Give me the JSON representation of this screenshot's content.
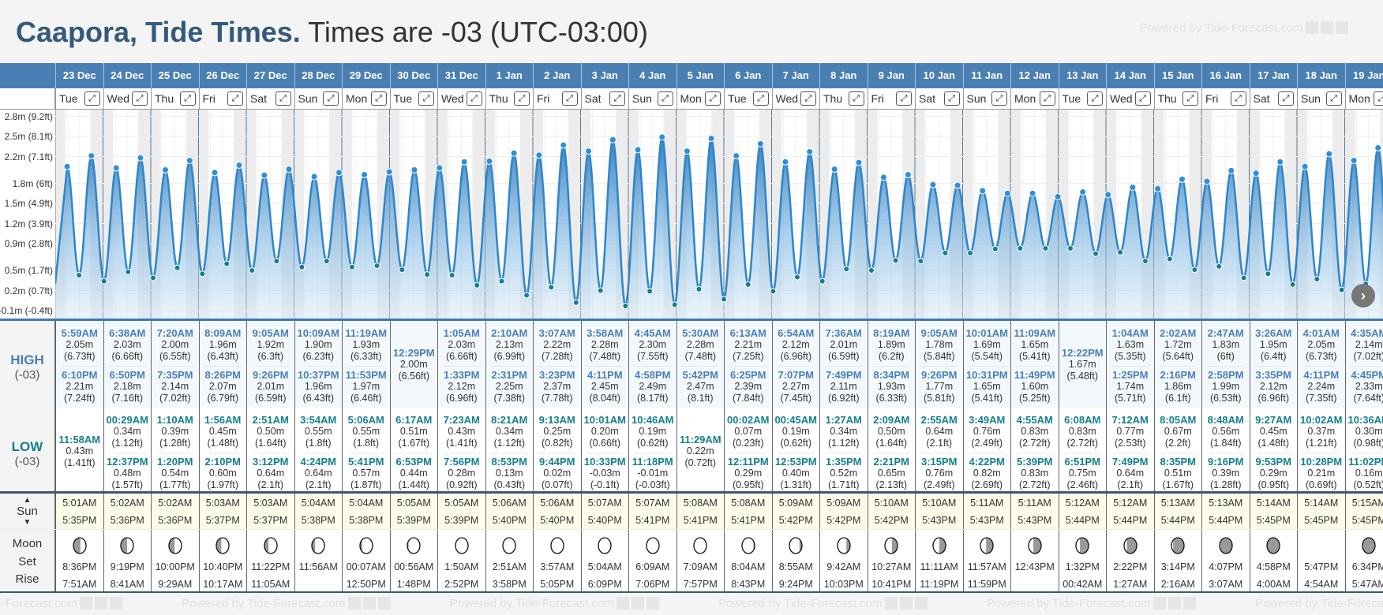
{
  "title": {
    "location": "Caapora, Tide Times.",
    "timezone": "Times are -03 (UTC-03:00)"
  },
  "watermark": "Powered by Tide-Forecast.com",
  "labels": {
    "high": "HIGH",
    "low": "LOW",
    "tz": "(-03)",
    "sun": "Sun",
    "sun_up": "▲",
    "sun_down": "▼",
    "moon": "Moon",
    "set": "Set",
    "rise": "Rise",
    "expand": "⤢",
    "next": "›"
  },
  "y_axis": [
    "2.8m (9.2ft)",
    "2.5m (8.1ft)",
    "2.2m (7.1ft)",
    "1.8m (6ft)",
    "1.5m (4.9ft)",
    "1.2m (3.9ft)",
    "0.9m (2.8ft)",
    "0.5m (1.7ft)",
    "0.2m (0.7ft)",
    "-0.1m (-0.4ft)"
  ],
  "colors": {
    "header": "#4a7fb4",
    "high": "#4a7fb8",
    "low": "#137f8c",
    "curve": "#2f86c8"
  },
  "days": [
    {
      "date": "23 Dec",
      "dow": "Tue",
      "high": [
        {
          "t": "5:59AM",
          "m": "2.05m",
          "ft": "(6.73ft)"
        },
        {
          "t": "6:10PM",
          "m": "2.21m",
          "ft": "(7.24ft)"
        }
      ],
      "low": [
        {
          "t": "11:58AM",
          "m": "0.43m",
          "ft": "(1.41ft)"
        }
      ],
      "sunrise": "5:01AM",
      "sunset": "5:35PM",
      "moon_dark": 0.55,
      "moon_side": "left",
      "moonset": "8:36PM",
      "moonrise": "7:51AM"
    },
    {
      "date": "24 Dec",
      "dow": "Wed",
      "high": [
        {
          "t": "6:38AM",
          "m": "2.03m",
          "ft": "(6.66ft)"
        },
        {
          "t": "6:50PM",
          "m": "2.18m",
          "ft": "(7.16ft)"
        }
      ],
      "low": [
        {
          "t": "00:29AM",
          "m": "0.34m",
          "ft": "(1.12ft)"
        },
        {
          "t": "12:37PM",
          "m": "0.48m",
          "ft": "(1.57ft)"
        }
      ],
      "sunrise": "5:02AM",
      "sunset": "5:36PM",
      "moon_dark": 0.5,
      "moon_side": "left",
      "moonset": "9:19PM",
      "moonrise": "8:41AM"
    },
    {
      "date": "25 Dec",
      "dow": "Thu",
      "high": [
        {
          "t": "7:20AM",
          "m": "2.00m",
          "ft": "(6.55ft)"
        },
        {
          "t": "7:35PM",
          "m": "2.14m",
          "ft": "(7.02ft)"
        }
      ],
      "low": [
        {
          "t": "1:10AM",
          "m": "0.39m",
          "ft": "(1.28ft)"
        },
        {
          "t": "1:20PM",
          "m": "0.54m",
          "ft": "(1.77ft)"
        }
      ],
      "sunrise": "5:02AM",
      "sunset": "5:36PM",
      "moon_dark": 0.45,
      "moon_side": "left",
      "moonset": "10:00PM",
      "moonrise": "9:29AM"
    },
    {
      "date": "26 Dec",
      "dow": "Fri",
      "high": [
        {
          "t": "8:09AM",
          "m": "1.96m",
          "ft": "(6.43ft)"
        },
        {
          "t": "8:26PM",
          "m": "2.07m",
          "ft": "(6.79ft)"
        }
      ],
      "low": [
        {
          "t": "1:56AM",
          "m": "0.45m",
          "ft": "(1.48ft)"
        },
        {
          "t": "2:10PM",
          "m": "0.60m",
          "ft": "(1.97ft)"
        }
      ],
      "sunrise": "5:03AM",
      "sunset": "5:37PM",
      "moon_dark": 0.4,
      "moon_side": "left",
      "moonset": "10:40PM",
      "moonrise": "10:17AM"
    },
    {
      "date": "27 Dec",
      "dow": "Sat",
      "high": [
        {
          "t": "9:05AM",
          "m": "1.92m",
          "ft": "(6.3ft)"
        },
        {
          "t": "9:26PM",
          "m": "2.01m",
          "ft": "(6.59ft)"
        }
      ],
      "low": [
        {
          "t": "2:51AM",
          "m": "0.50m",
          "ft": "(1.64ft)"
        },
        {
          "t": "3:12PM",
          "m": "0.64m",
          "ft": "(2.1ft)"
        }
      ],
      "sunrise": "5:03AM",
      "sunset": "5:37PM",
      "moon_dark": 0.32,
      "moon_side": "left",
      "moonset": "11:22PM",
      "moonrise": "11:05AM"
    },
    {
      "date": "28 Dec",
      "dow": "Sun",
      "high": [
        {
          "t": "10:09AM",
          "m": "1.90m",
          "ft": "(6.23ft)"
        },
        {
          "t": "10:37PM",
          "m": "1.96m",
          "ft": "(6.43ft)"
        }
      ],
      "low": [
        {
          "t": "3:54AM",
          "m": "0.55m",
          "ft": "(1.8ft)"
        },
        {
          "t": "4:24PM",
          "m": "0.64m",
          "ft": "(2.1ft)"
        }
      ],
      "sunrise": "5:04AM",
      "sunset": "5:38PM",
      "moon_dark": 0.25,
      "moon_side": "left",
      "moonset": "",
      "moonrise": "11:56AM"
    },
    {
      "date": "29 Dec",
      "dow": "Mon",
      "high": [
        {
          "t": "11:19AM",
          "m": "1.93m",
          "ft": "(6.33ft)"
        },
        {
          "t": "11:53PM",
          "m": "1.97m",
          "ft": "(6.46ft)"
        }
      ],
      "low": [
        {
          "t": "5:06AM",
          "m": "0.55m",
          "ft": "(1.8ft)"
        },
        {
          "t": "5:41PM",
          "m": "0.57m",
          "ft": "(1.87ft)"
        }
      ],
      "sunrise": "5:04AM",
      "sunset": "5:38PM",
      "moon_dark": 0.18,
      "moon_side": "left",
      "moonset": "00:07AM",
      "moonrise": "12:50PM"
    },
    {
      "date": "30 Dec",
      "dow": "Tue",
      "high": [
        {
          "t": "12:29PM",
          "m": "2.00m",
          "ft": "(6.56ft)"
        }
      ],
      "low": [
        {
          "t": "6:17AM",
          "m": "0.51m",
          "ft": "(1.67ft)"
        },
        {
          "t": "6:53PM",
          "m": "0.44m",
          "ft": "(1.44ft)"
        }
      ],
      "sunrise": "5:05AM",
      "sunset": "5:39PM",
      "moon_dark": 0.1,
      "moon_side": "left",
      "moonset": "00:56AM",
      "moonrise": "1:48PM"
    },
    {
      "date": "31 Dec",
      "dow": "Wed",
      "high": [
        {
          "t": "1:05AM",
          "m": "2.03m",
          "ft": "(6.66ft)"
        },
        {
          "t": "1:33PM",
          "m": "2.12m",
          "ft": "(6.96ft)"
        }
      ],
      "low": [
        {
          "t": "7:23AM",
          "m": "0.43m",
          "ft": "(1.41ft)"
        },
        {
          "t": "7:56PM",
          "m": "0.28m",
          "ft": "(0.92ft)"
        }
      ],
      "sunrise": "5:05AM",
      "sunset": "5:39PM",
      "moon_dark": 0.05,
      "moon_side": "left",
      "moonset": "1:50AM",
      "moonrise": "2:52PM"
    },
    {
      "date": "1 Jan",
      "dow": "Thu",
      "high": [
        {
          "t": "2:10AM",
          "m": "2.13m",
          "ft": "(6.99ft)"
        },
        {
          "t": "2:31PM",
          "m": "2.25m",
          "ft": "(7.38ft)"
        }
      ],
      "low": [
        {
          "t": "8:21AM",
          "m": "0.34m",
          "ft": "(1.12ft)"
        },
        {
          "t": "8:53PM",
          "m": "0.13m",
          "ft": "(0.43ft)"
        }
      ],
      "sunrise": "5:06AM",
      "sunset": "5:40PM",
      "moon_dark": 0.02,
      "moon_side": "left",
      "moonset": "2:51AM",
      "moonrise": "3:58PM"
    },
    {
      "date": "2 Jan",
      "dow": "Fri",
      "high": [
        {
          "t": "3:07AM",
          "m": "2.22m",
          "ft": "(7.28ft)"
        },
        {
          "t": "3:23PM",
          "m": "2.37m",
          "ft": "(7.78ft)"
        }
      ],
      "low": [
        {
          "t": "9:13AM",
          "m": "0.25m",
          "ft": "(0.82ft)"
        },
        {
          "t": "9:44PM",
          "m": "0.02m",
          "ft": "(0.07ft)"
        }
      ],
      "sunrise": "5:06AM",
      "sunset": "5:40PM",
      "moon_dark": 0,
      "moon_side": "left",
      "moonset": "3:57AM",
      "moonrise": "5:05PM"
    },
    {
      "date": "3 Jan",
      "dow": "Sat",
      "high": [
        {
          "t": "3:58AM",
          "m": "2.28m",
          "ft": "(7.48ft)"
        },
        {
          "t": "4:11PM",
          "m": "2.45m",
          "ft": "(8.04ft)"
        }
      ],
      "low": [
        {
          "t": "10:01AM",
          "m": "0.20m",
          "ft": "(0.66ft)"
        },
        {
          "t": "10:33PM",
          "m": "-0.03m",
          "ft": "(-0.1ft)"
        }
      ],
      "sunrise": "5:07AM",
      "sunset": "5:40PM",
      "moon_dark": 0,
      "moon_side": "left",
      "moonset": "5:04AM",
      "moonrise": "6:09PM"
    },
    {
      "date": "4 Jan",
      "dow": "Sun",
      "high": [
        {
          "t": "4:45AM",
          "m": "2.30m",
          "ft": "(7.55ft)"
        },
        {
          "t": "4:58PM",
          "m": "2.49m",
          "ft": "(8.17ft)"
        }
      ],
      "low": [
        {
          "t": "10:46AM",
          "m": "0.19m",
          "ft": "(0.62ft)"
        },
        {
          "t": "11:18PM",
          "m": "-0.01m",
          "ft": "(-0.03ft)"
        }
      ],
      "sunrise": "5:07AM",
      "sunset": "5:41PM",
      "moon_dark": 0,
      "moon_side": "right",
      "moonset": "6:09AM",
      "moonrise": "7:06PM"
    },
    {
      "date": "5 Jan",
      "dow": "Mon",
      "high": [
        {
          "t": "5:30AM",
          "m": "2.28m",
          "ft": "(7.48ft)"
        },
        {
          "t": "5:42PM",
          "m": "2.47m",
          "ft": "(8.1ft)"
        }
      ],
      "low": [
        {
          "t": "11:29AM",
          "m": "0.22m",
          "ft": "(0.72ft)"
        }
      ],
      "sunrise": "5:08AM",
      "sunset": "5:41PM",
      "moon_dark": 0.03,
      "moon_side": "right",
      "moonset": "7:09AM",
      "moonrise": "7:57PM"
    },
    {
      "date": "6 Jan",
      "dow": "Tue",
      "high": [
        {
          "t": "6:13AM",
          "m": "2.21m",
          "ft": "(7.25ft)"
        },
        {
          "t": "6:25PM",
          "m": "2.39m",
          "ft": "(7.84ft)"
        }
      ],
      "low": [
        {
          "t": "00:02AM",
          "m": "0.07m",
          "ft": "(0.23ft)"
        },
        {
          "t": "12:11PM",
          "m": "0.29m",
          "ft": "(0.95ft)"
        }
      ],
      "sunrise": "5:08AM",
      "sunset": "5:41PM",
      "moon_dark": 0.1,
      "moon_side": "right",
      "moonset": "8:04AM",
      "moonrise": "8:43PM"
    },
    {
      "date": "7 Jan",
      "dow": "Wed",
      "high": [
        {
          "t": "6:54AM",
          "m": "2.12m",
          "ft": "(6.96ft)"
        },
        {
          "t": "7:07PM",
          "m": "2.27m",
          "ft": "(7.45ft)"
        }
      ],
      "low": [
        {
          "t": "00:45AM",
          "m": "0.19m",
          "ft": "(0.62ft)"
        },
        {
          "t": "12:53PM",
          "m": "0.40m",
          "ft": "(1.31ft)"
        }
      ],
      "sunrise": "5:09AM",
      "sunset": "5:42PM",
      "moon_dark": 0.2,
      "moon_side": "right",
      "moonset": "8:55AM",
      "moonrise": "9:24PM"
    },
    {
      "date": "8 Jan",
      "dow": "Thu",
      "high": [
        {
          "t": "7:36AM",
          "m": "2.01m",
          "ft": "(6.59ft)"
        },
        {
          "t": "7:49PM",
          "m": "2.11m",
          "ft": "(6.92ft)"
        }
      ],
      "low": [
        {
          "t": "1:27AM",
          "m": "0.34m",
          "ft": "(1.12ft)"
        },
        {
          "t": "1:35PM",
          "m": "0.52m",
          "ft": "(1.71ft)"
        }
      ],
      "sunrise": "5:09AM",
      "sunset": "5:42PM",
      "moon_dark": 0.3,
      "moon_side": "right",
      "moonset": "9:42AM",
      "moonrise": "10:03PM"
    },
    {
      "date": "9 Jan",
      "dow": "Fri",
      "high": [
        {
          "t": "8:19AM",
          "m": "1.89m",
          "ft": "(6.2ft)"
        },
        {
          "t": "8:34PM",
          "m": "1.93m",
          "ft": "(6.33ft)"
        }
      ],
      "low": [
        {
          "t": "2:09AM",
          "m": "0.50m",
          "ft": "(1.64ft)"
        },
        {
          "t": "2:21PM",
          "m": "0.65m",
          "ft": "(2.13ft)"
        }
      ],
      "sunrise": "5:10AM",
      "sunset": "5:42PM",
      "moon_dark": 0.45,
      "moon_side": "right",
      "moonset": "10:27AM",
      "moonrise": "10:41PM"
    },
    {
      "date": "10 Jan",
      "dow": "Sat",
      "high": [
        {
          "t": "9:05AM",
          "m": "1.78m",
          "ft": "(5.84ft)"
        },
        {
          "t": "9:26PM",
          "m": "1.77m",
          "ft": "(5.81ft)"
        }
      ],
      "low": [
        {
          "t": "2:55AM",
          "m": "0.64m",
          "ft": "(2.1ft)"
        },
        {
          "t": "3:15PM",
          "m": "0.76m",
          "ft": "(2.49ft)"
        }
      ],
      "sunrise": "5:10AM",
      "sunset": "5:43PM",
      "moon_dark": 0.5,
      "moon_side": "right",
      "moonset": "11:11AM",
      "moonrise": "11:19PM"
    },
    {
      "date": "11 Jan",
      "dow": "Sun",
      "high": [
        {
          "t": "10:01AM",
          "m": "1.69m",
          "ft": "(5.54ft)"
        },
        {
          "t": "10:31PM",
          "m": "1.65m",
          "ft": "(5.41ft)"
        }
      ],
      "low": [
        {
          "t": "3:49AM",
          "m": "0.76m",
          "ft": "(2.49ft)"
        },
        {
          "t": "4:22PM",
          "m": "0.82m",
          "ft": "(2.69ft)"
        }
      ],
      "sunrise": "5:11AM",
      "sunset": "5:43PM",
      "moon_dark": 0.55,
      "moon_side": "right",
      "moonset": "11:57AM",
      "moonrise": "11:59PM"
    },
    {
      "date": "12 Jan",
      "dow": "Mon",
      "high": [
        {
          "t": "11:09AM",
          "m": "1.65m",
          "ft": "(5.41ft)"
        },
        {
          "t": "11:49PM",
          "m": "1.60m",
          "ft": "(5.25ft)"
        }
      ],
      "low": [
        {
          "t": "4:55AM",
          "m": "0.83m",
          "ft": "(2.72ft)"
        },
        {
          "t": "5:39PM",
          "m": "0.83m",
          "ft": "(2.72ft)"
        }
      ],
      "sunrise": "5:11AM",
      "sunset": "5:43PM",
      "moon_dark": 0.62,
      "moon_side": "right",
      "moonset": "12:43PM",
      "moonrise": ""
    },
    {
      "date": "13 Jan",
      "dow": "Tue",
      "high": [
        {
          "t": "12:22PM",
          "m": "1.67m",
          "ft": "(5.48ft)"
        }
      ],
      "low": [
        {
          "t": "6:08AM",
          "m": "0.83m",
          "ft": "(2.72ft)"
        },
        {
          "t": "6:51PM",
          "m": "0.75m",
          "ft": "(2.46ft)"
        }
      ],
      "sunrise": "5:12AM",
      "sunset": "5:44PM",
      "moon_dark": 0.68,
      "moon_side": "right",
      "moonset": "1:32PM",
      "moonrise": "00:42AM"
    },
    {
      "date": "14 Jan",
      "dow": "Wed",
      "high": [
        {
          "t": "1:04AM",
          "m": "1.63m",
          "ft": "(5.35ft)"
        },
        {
          "t": "1:25PM",
          "m": "1.74m",
          "ft": "(5.71ft)"
        }
      ],
      "low": [
        {
          "t": "7:12AM",
          "m": "0.77m",
          "ft": "(2.53ft)"
        },
        {
          "t": "7:49PM",
          "m": "0.64m",
          "ft": "(2.1ft)"
        }
      ],
      "sunrise": "5:12AM",
      "sunset": "5:44PM",
      "moon_dark": 0.78,
      "moon_side": "right",
      "moonset": "2:22PM",
      "moonrise": "1:27AM"
    },
    {
      "date": "15 Jan",
      "dow": "Thu",
      "high": [
        {
          "t": "2:02AM",
          "m": "1.72m",
          "ft": "(5.64ft)"
        },
        {
          "t": "2:16PM",
          "m": "1.86m",
          "ft": "(6.1ft)"
        }
      ],
      "low": [
        {
          "t": "8:05AM",
          "m": "0.67m",
          "ft": "(2.2ft)"
        },
        {
          "t": "8:35PM",
          "m": "0.51m",
          "ft": "(1.67ft)"
        }
      ],
      "sunrise": "5:13AM",
      "sunset": "5:44PM",
      "moon_dark": 0.86,
      "moon_side": "right",
      "moonset": "3:14PM",
      "moonrise": "2:16AM"
    },
    {
      "date": "16 Jan",
      "dow": "Fri",
      "high": [
        {
          "t": "2:47AM",
          "m": "1.83m",
          "ft": "(6ft)"
        },
        {
          "t": "2:58PM",
          "m": "1.99m",
          "ft": "(6.53ft)"
        }
      ],
      "low": [
        {
          "t": "8:48AM",
          "m": "0.56m",
          "ft": "(1.84ft)"
        },
        {
          "t": "9:16PM",
          "m": "0.39m",
          "ft": "(1.28ft)"
        }
      ],
      "sunrise": "5:13AM",
      "sunset": "5:44PM",
      "moon_dark": 0.93,
      "moon_side": "right",
      "moonset": "4:07PM",
      "moonrise": "3:07AM"
    },
    {
      "date": "17 Jan",
      "dow": "Sat",
      "high": [
        {
          "t": "3:26AM",
          "m": "1.95m",
          "ft": "(6.4ft)"
        },
        {
          "t": "3:35PM",
          "m": "2.12m",
          "ft": "(6.96ft)"
        }
      ],
      "low": [
        {
          "t": "9:27AM",
          "m": "0.45m",
          "ft": "(1.48ft)"
        },
        {
          "t": "9:53PM",
          "m": "0.29m",
          "ft": "(0.95ft)"
        }
      ],
      "sunrise": "5:14AM",
      "sunset": "5:45PM",
      "moon_dark": 1,
      "moon_side": "right",
      "moonset": "4:58PM",
      "moonrise": "4:00AM"
    },
    {
      "date": "18 Jan",
      "dow": "Sun",
      "high": [
        {
          "t": "4:01AM",
          "m": "2.05m",
          "ft": "(6.73ft)"
        },
        {
          "t": "4:11PM",
          "m": "2.24m",
          "ft": "(7.35ft)"
        }
      ],
      "low": [
        {
          "t": "10:02AM",
          "m": "0.37m",
          "ft": "(1.21ft)"
        },
        {
          "t": "10:28PM",
          "m": "0.21m",
          "ft": "(0.69ft)"
        }
      ],
      "sunrise": "5:14AM",
      "sunset": "5:45PM",
      "moon_dark": null,
      "moon_side": "",
      "moonset": "5:47PM",
      "moonrise": "4:54AM"
    },
    {
      "date": "19 Jan",
      "dow": "Mon",
      "high": [
        {
          "t": "4:35AM",
          "m": "2.14m",
          "ft": "(7.02ft)"
        },
        {
          "t": "4:45PM",
          "m": "2.33m",
          "ft": "(7.64ft)"
        }
      ],
      "low": [
        {
          "t": "10:36AM",
          "m": "0.30m",
          "ft": "(0.98ft)"
        },
        {
          "t": "11:02PM",
          "m": "0.16m",
          "ft": "(0.52ft)"
        }
      ],
      "sunrise": "5:15AM",
      "sunset": "5:45PM",
      "moon_dark": 1,
      "moon_side": "right",
      "moonset": "6:34PM",
      "moonrise": "5:47AM"
    }
  ]
}
